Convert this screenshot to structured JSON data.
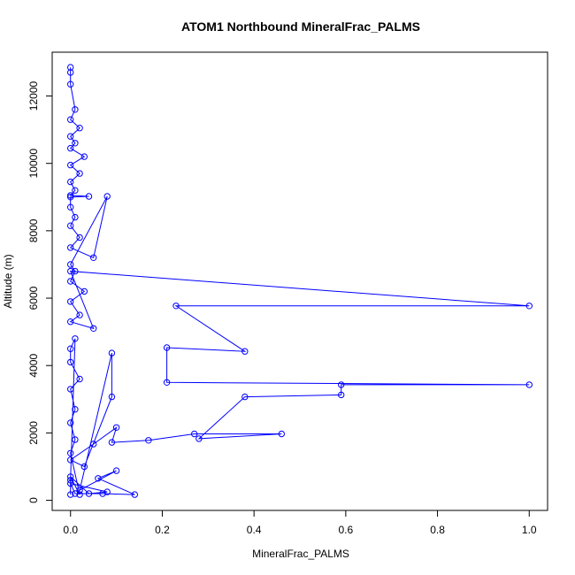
{
  "chart_data": {
    "type": "line",
    "title": "ATOM1 Northbound MineralFrac_PALMS",
    "xlabel": "MineralFrac_PALMS",
    "ylabel": "Altitude (m)",
    "xlim": [
      -0.04,
      1.04
    ],
    "ylim": [
      -300,
      13300
    ],
    "xticks": [
      0.0,
      0.2,
      0.4,
      0.6,
      0.8,
      1.0
    ],
    "xtick_labels": [
      "0.0",
      "0.2",
      "0.4",
      "0.6",
      "0.8",
      "1.0"
    ],
    "yticks": [
      0,
      2000,
      4000,
      6000,
      8000,
      10000,
      12000
    ],
    "ytick_labels": [
      "0",
      "2000",
      "4000",
      "6000",
      "8000",
      "10000",
      "12000"
    ],
    "grid": false,
    "markers": "open-circle",
    "series_color": "#0000ff",
    "series": [
      {
        "x": [
          0.0,
          0.0,
          0.0,
          0.01,
          0.0,
          0.02,
          0.0,
          0.01,
          0.0,
          0.03,
          0.0,
          0.02,
          0.0,
          0.01,
          0.0,
          0.04,
          0.0,
          0.0,
          0.01,
          0.0,
          0.02,
          0.0,
          0.05,
          0.08,
          0.0,
          0.01,
          0.0,
          0.03,
          0.0,
          0.02,
          0.0,
          0.05,
          0.0,
          1.0,
          0.23,
          0.38,
          0.21,
          0.21,
          1.0,
          0.59,
          0.59,
          0.38,
          0.28,
          0.46,
          0.27,
          0.17,
          0.09,
          0.1,
          0.05,
          0.0,
          0.03,
          0.09,
          0.09,
          0.02,
          0.1,
          0.06,
          0.14,
          0.07,
          0.01,
          0.0,
          0.08,
          0.04,
          0.0,
          0.02,
          0.0,
          0.01,
          0.0,
          0.01,
          0.0,
          0.02,
          0.0,
          0.0,
          0.01,
          0.0,
          0.0
        ],
        "y": [
          12850,
          12700,
          12350,
          11600,
          11300,
          11050,
          10800,
          10600,
          10450,
          10200,
          9950,
          9700,
          9450,
          9200,
          9050,
          9020,
          9000,
          8700,
          8400,
          8150,
          7800,
          7500,
          7200,
          9020,
          7000,
          6800,
          6500,
          6200,
          5900,
          5500,
          5300,
          5100,
          6800,
          5770,
          5770,
          4420,
          4530,
          3500,
          3430,
          3430,
          3130,
          3070,
          1830,
          1970,
          1970,
          1780,
          1720,
          2160,
          1670,
          1200,
          1000,
          3070,
          4370,
          300,
          880,
          650,
          170,
          200,
          200,
          500,
          250,
          200,
          700,
          170,
          1400,
          1800,
          2300,
          2700,
          3300,
          3600,
          4100,
          4500,
          4800,
          600,
          170
        ]
      }
    ]
  }
}
